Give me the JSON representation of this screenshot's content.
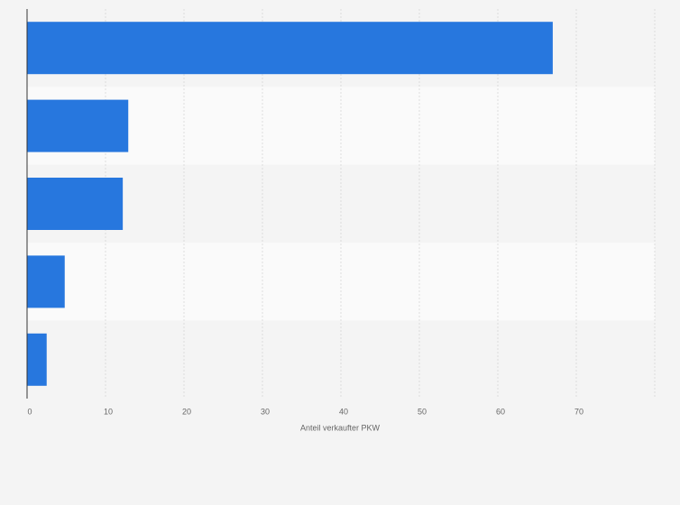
{
  "chart_data": {
    "type": "hbar",
    "x_label": "Anteil verkaufter PKW",
    "categories": [
      null,
      null,
      null,
      null,
      null
    ],
    "values": [
      67.0,
      12.9,
      12.2,
      4.8,
      2.5
    ],
    "color": "#2777de",
    "xlim": [
      0,
      80
    ],
    "xticks": [
      0,
      10,
      20,
      30,
      40,
      50,
      60,
      70
    ],
    "grid": true
  }
}
